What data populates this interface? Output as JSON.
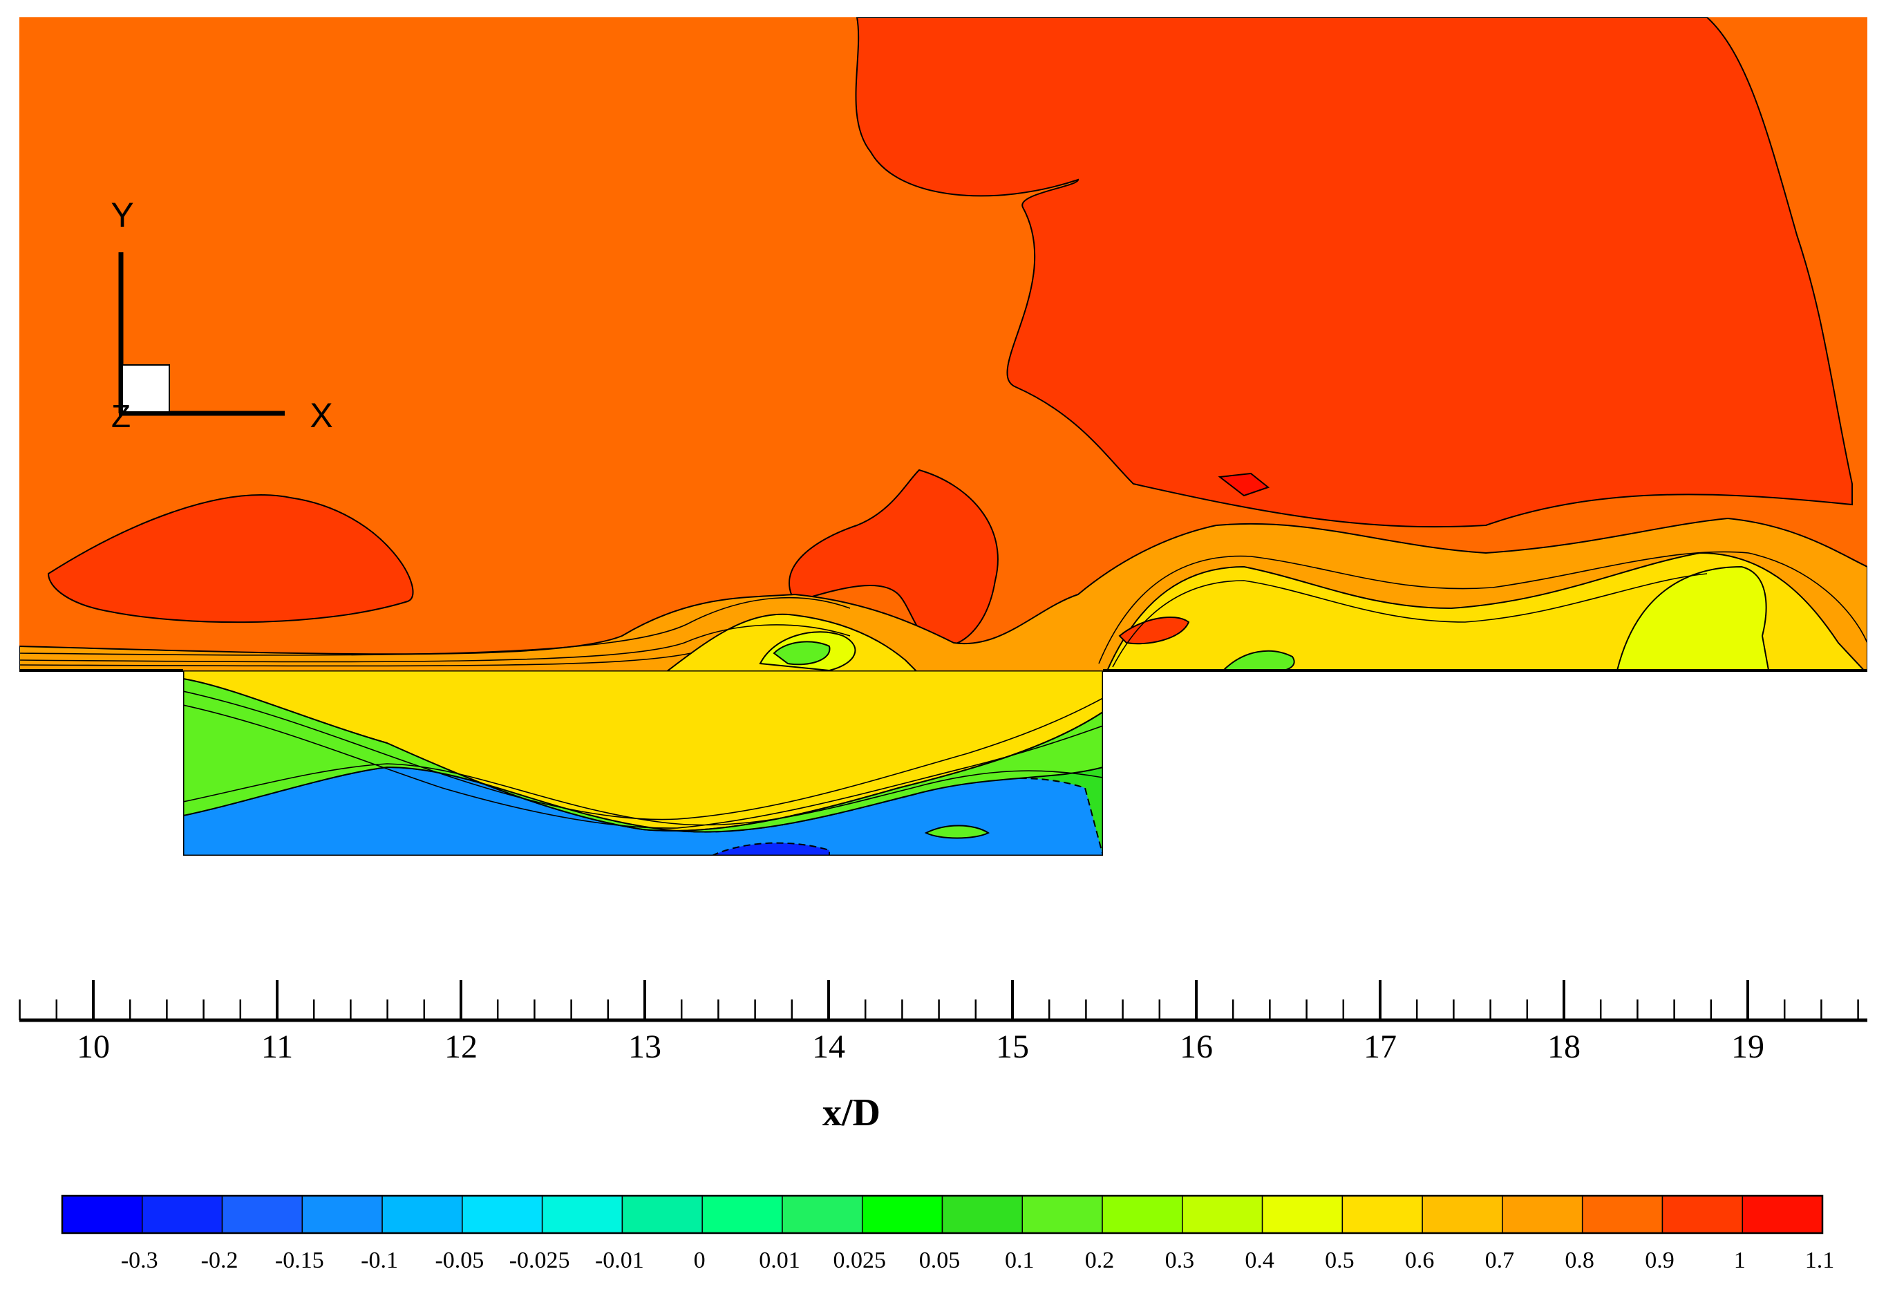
{
  "chart_data": {
    "type": "heatmap",
    "title": "",
    "xlabel": "x/D",
    "xlim": [
      9.6,
      19.7
    ],
    "x_ticks": [
      "10",
      "11",
      "12",
      "13",
      "14",
      "15",
      "16",
      "17",
      "18",
      "19"
    ],
    "x_tick_values": [
      10,
      11,
      12,
      13,
      14,
      15,
      16,
      17,
      18,
      19
    ],
    "x_minor_step": 0.2,
    "cavity": {
      "x_start": 10.5,
      "x_end": 15.5
    },
    "axis_triad": {
      "x": "X",
      "y": "Y",
      "z": "Z"
    },
    "colorbar": {
      "levels": [
        "-0.3",
        "-0.2",
        "-0.15",
        "-0.1",
        "-0.05",
        "-0.025",
        "-0.01",
        "0",
        "0.01",
        "0.025",
        "0.05",
        "0.1",
        "0.2",
        "0.3",
        "0.4",
        "0.5",
        "0.6",
        "0.7",
        "0.8",
        "0.9",
        "1",
        "1.1"
      ],
      "colors": [
        "#0000ff",
        "#0a28ff",
        "#1a60ff",
        "#1090ff",
        "#00b8ff",
        "#00e0ff",
        "#00f5e0",
        "#00f0a0",
        "#00ff80",
        "#20f060",
        "#00ff00",
        "#30e020",
        "#60f020",
        "#90ff00",
        "#c0ff00",
        "#e8ff00",
        "#ffe000",
        "#ffc000",
        "#ffa000",
        "#ff6a00",
        "#ff3a00",
        "#ff1000"
      ]
    },
    "regions": {
      "freestream": "#ff6a00",
      "high_velocity": "#ff3a00",
      "shear_layer_upper": "#ffa000",
      "shear_layer_mid": "#ffe000",
      "shear_layer_low": "#e8ff00",
      "cavity_shear": "#60f020",
      "cavity_core": "#30e020",
      "recirculation": "#1090ff",
      "recirculation_strong": "#0a28ff"
    }
  }
}
